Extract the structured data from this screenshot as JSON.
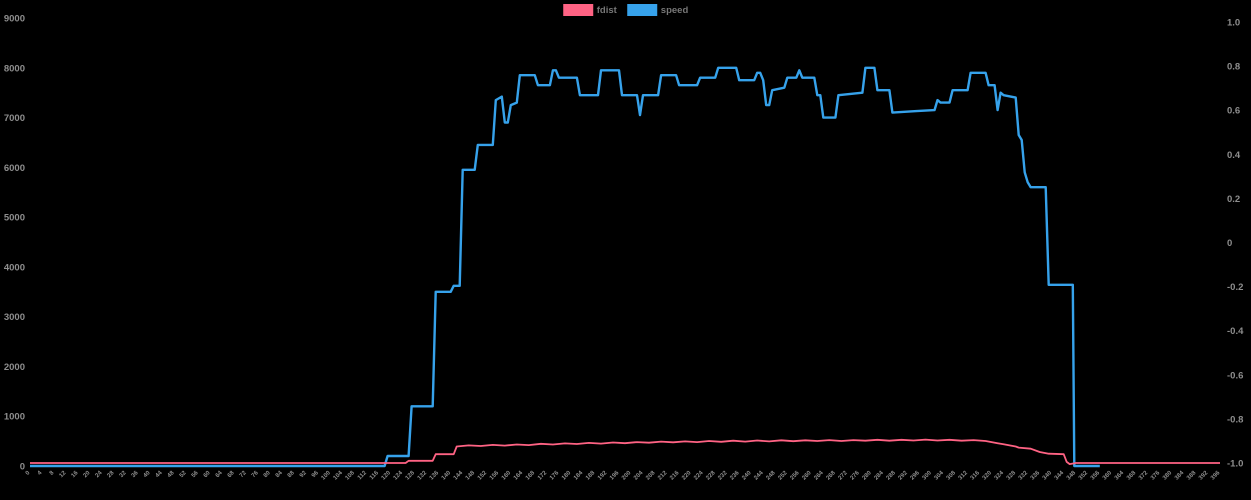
{
  "chart_data": {
    "type": "line",
    "title": "",
    "legend_position": "top",
    "grid": false,
    "background": "#000000",
    "tick_color": "#8e8e8e",
    "legend_text_color": "#777777",
    "y_left": {
      "min": 0,
      "max": 9000,
      "tick_step": 1000,
      "labels": [
        "9000",
        "8000",
        "7000",
        "6000",
        "5000",
        "4000",
        "3000",
        "2000",
        "1000",
        "0"
      ]
    },
    "y_right": {
      "min": -1.0,
      "max": 1.0,
      "tick_step": 0.2,
      "labels": [
        "1.0",
        "0.8",
        "0.6",
        "0.4",
        "0.2",
        "0",
        "-0.2",
        "-0.4",
        "-0.6",
        "-0.8",
        "-1.0"
      ]
    },
    "x_tick_labels": [
      0,
      4,
      8,
      12,
      16,
      20,
      24,
      28,
      32,
      36,
      40,
      44,
      48,
      52,
      56,
      60,
      64,
      68,
      72,
      76,
      80,
      84,
      88,
      92,
      96,
      100,
      104,
      108,
      112,
      116,
      120,
      124,
      128,
      132,
      136,
      140,
      144,
      148,
      152,
      156,
      160,
      164,
      168,
      172,
      176,
      180,
      184,
      188,
      192,
      196,
      200,
      204,
      208,
      212,
      216,
      220,
      224,
      228,
      232,
      236,
      240,
      244,
      248,
      252,
      256,
      260,
      264,
      268,
      272,
      276,
      280,
      284,
      288,
      292,
      296,
      300,
      304,
      308,
      312,
      316,
      320,
      324,
      328,
      332,
      336,
      340,
      344,
      348,
      352,
      356,
      360,
      364,
      368,
      372,
      376,
      380,
      384,
      388,
      392,
      396
    ],
    "series": [
      {
        "name": "fdist",
        "color": "#ff6384",
        "axis": "right",
        "points": [
          [
            0,
            -1
          ],
          [
            30,
            -1
          ],
          [
            60,
            -1
          ],
          [
            90,
            -1
          ],
          [
            118,
            -1
          ],
          [
            125,
            -1
          ],
          [
            126,
            -0.99
          ],
          [
            134,
            -0.99
          ],
          [
            135,
            -0.96
          ],
          [
            141,
            -0.96
          ],
          [
            142,
            -0.925
          ],
          [
            146,
            -0.92
          ],
          [
            150,
            -0.923
          ],
          [
            154,
            -0.918
          ],
          [
            158,
            -0.921
          ],
          [
            162,
            -0.916
          ],
          [
            166,
            -0.919
          ],
          [
            170,
            -0.913
          ],
          [
            174,
            -0.916
          ],
          [
            178,
            -0.911
          ],
          [
            182,
            -0.914
          ],
          [
            186,
            -0.909
          ],
          [
            190,
            -0.912
          ],
          [
            194,
            -0.907
          ],
          [
            198,
            -0.91
          ],
          [
            202,
            -0.905
          ],
          [
            206,
            -0.908
          ],
          [
            210,
            -0.903
          ],
          [
            214,
            -0.906
          ],
          [
            218,
            -0.902
          ],
          [
            222,
            -0.905
          ],
          [
            226,
            -0.9
          ],
          [
            230,
            -0.904
          ],
          [
            234,
            -0.899
          ],
          [
            238,
            -0.903
          ],
          [
            242,
            -0.898
          ],
          [
            246,
            -0.902
          ],
          [
            250,
            -0.897
          ],
          [
            254,
            -0.901
          ],
          [
            258,
            -0.897
          ],
          [
            262,
            -0.9
          ],
          [
            266,
            -0.896
          ],
          [
            270,
            -0.9
          ],
          [
            274,
            -0.896
          ],
          [
            278,
            -0.899
          ],
          [
            282,
            -0.895
          ],
          [
            286,
            -0.899
          ],
          [
            290,
            -0.895
          ],
          [
            294,
            -0.898
          ],
          [
            298,
            -0.894
          ],
          [
            302,
            -0.898
          ],
          [
            306,
            -0.895
          ],
          [
            310,
            -0.899
          ],
          [
            314,
            -0.896
          ],
          [
            318,
            -0.9
          ],
          [
            320,
            -0.905
          ],
          [
            322,
            -0.91
          ],
          [
            324,
            -0.915
          ],
          [
            326,
            -0.92
          ],
          [
            328,
            -0.925
          ],
          [
            329,
            -0.93
          ],
          [
            333,
            -0.935
          ],
          [
            336,
            -0.95
          ],
          [
            339,
            -0.958
          ],
          [
            344,
            -0.96
          ],
          [
            345,
            -0.995
          ],
          [
            346,
            -1.005
          ],
          [
            348,
            -1.0
          ],
          [
            396,
            -1.0
          ]
        ]
      },
      {
        "name": "speed",
        "color": "#36a2eb",
        "axis": "left",
        "points": [
          [
            0,
            0
          ],
          [
            20,
            0
          ],
          [
            40,
            0
          ],
          [
            60,
            0
          ],
          [
            80,
            0
          ],
          [
            100,
            0
          ],
          [
            118,
            0
          ],
          [
            119,
            200
          ],
          [
            126,
            200
          ],
          [
            127,
            1200
          ],
          [
            134,
            1200
          ],
          [
            135,
            3500
          ],
          [
            140,
            3500
          ],
          [
            141,
            3620
          ],
          [
            143,
            3620
          ],
          [
            144,
            5950
          ],
          [
            148,
            5950
          ],
          [
            149,
            6450
          ],
          [
            154,
            6450
          ],
          [
            155,
            7350
          ],
          [
            157,
            7420
          ],
          [
            158,
            6900
          ],
          [
            159,
            6900
          ],
          [
            160,
            7250
          ],
          [
            162,
            7300
          ],
          [
            163,
            7850
          ],
          [
            168,
            7850
          ],
          [
            169,
            7650
          ],
          [
            173,
            7650
          ],
          [
            174,
            7950
          ],
          [
            175,
            7950
          ],
          [
            176,
            7800
          ],
          [
            182,
            7800
          ],
          [
            183,
            7450
          ],
          [
            189,
            7450
          ],
          [
            190,
            7950
          ],
          [
            196,
            7950
          ],
          [
            197,
            7450
          ],
          [
            202,
            7450
          ],
          [
            203,
            7050
          ],
          [
            204,
            7450
          ],
          [
            209,
            7450
          ],
          [
            210,
            7850
          ],
          [
            215,
            7850
          ],
          [
            216,
            7650
          ],
          [
            222,
            7650
          ],
          [
            223,
            7800
          ],
          [
            228,
            7800
          ],
          [
            229,
            8000
          ],
          [
            235,
            8000
          ],
          [
            236,
            7750
          ],
          [
            241,
            7750
          ],
          [
            242,
            7900
          ],
          [
            243,
            7900
          ],
          [
            244,
            7750
          ],
          [
            245,
            7250
          ],
          [
            246,
            7250
          ],
          [
            247,
            7550
          ],
          [
            251,
            7600
          ],
          [
            252,
            7800
          ],
          [
            255,
            7800
          ],
          [
            256,
            7950
          ],
          [
            257,
            7800
          ],
          [
            261,
            7800
          ],
          [
            262,
            7450
          ],
          [
            263,
            7450
          ],
          [
            264,
            7000
          ],
          [
            268,
            7000
          ],
          [
            269,
            7450
          ],
          [
            277,
            7500
          ],
          [
            278,
            8000
          ],
          [
            281,
            8000
          ],
          [
            282,
            7550
          ],
          [
            286,
            7550
          ],
          [
            287,
            7100
          ],
          [
            295,
            7130
          ],
          [
            301,
            7150
          ],
          [
            302,
            7350
          ],
          [
            303,
            7300
          ],
          [
            306,
            7300
          ],
          [
            307,
            7550
          ],
          [
            312,
            7550
          ],
          [
            313,
            7900
          ],
          [
            318,
            7900
          ],
          [
            319,
            7650
          ],
          [
            321,
            7650
          ],
          [
            322,
            7150
          ],
          [
            323,
            7500
          ],
          [
            324,
            7450
          ],
          [
            328,
            7400
          ],
          [
            329,
            6650
          ],
          [
            330,
            6550
          ],
          [
            331,
            5900
          ],
          [
            332,
            5700
          ],
          [
            333,
            5600
          ],
          [
            338,
            5600
          ],
          [
            339,
            3640
          ],
          [
            346,
            3640
          ],
          [
            347,
            3640
          ],
          [
            347.5,
            0
          ],
          [
            356,
            0
          ]
        ]
      }
    ]
  }
}
